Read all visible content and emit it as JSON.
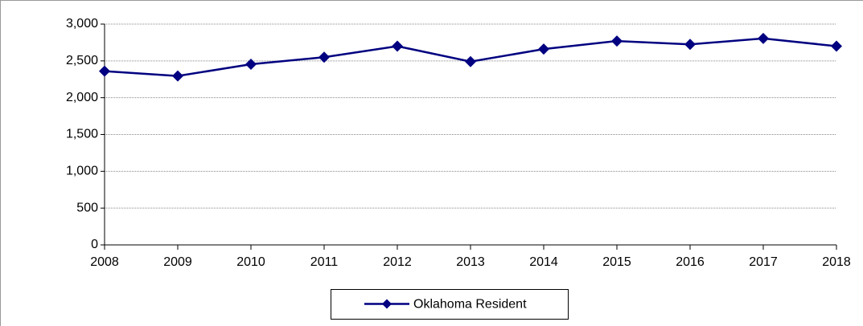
{
  "chart_data": {
    "type": "line",
    "categories": [
      "2008",
      "2009",
      "2010",
      "2011",
      "2012",
      "2013",
      "2014",
      "2015",
      "2016",
      "2017",
      "2018"
    ],
    "series": [
      {
        "name": "Oklahoma Resident",
        "color": "#000080",
        "values": [
          2360,
          2295,
          2455,
          2550,
          2700,
          2490,
          2660,
          2770,
          2725,
          2805,
          2700
        ]
      }
    ],
    "ylim": [
      0,
      3000
    ],
    "yticks": [
      0,
      500,
      {
        "value": 1000,
        "label": "1,000"
      },
      {
        "value": 1500,
        "label": "1,500"
      },
      {
        "value": 2000,
        "label": "2,000"
      },
      {
        "value": 2500,
        "label": "2,500"
      },
      {
        "value": 3000,
        "label": "3,000"
      }
    ],
    "grid": true,
    "legend": "bottom"
  }
}
